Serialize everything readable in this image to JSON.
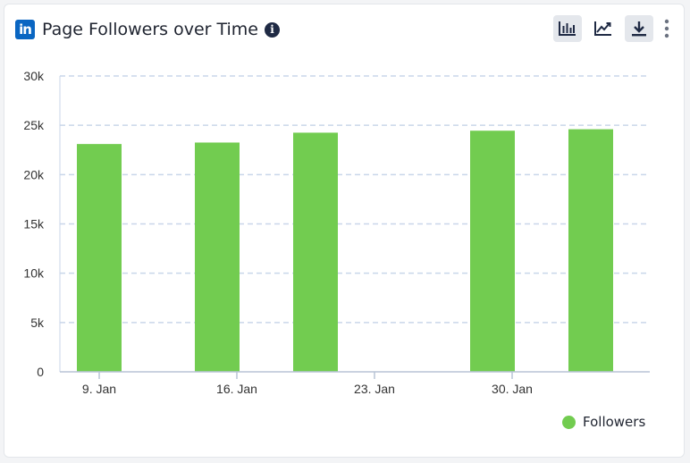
{
  "header": {
    "logo_text": "in",
    "title": "Page Followers over Time",
    "info_glyph": "i"
  },
  "toolbar": {
    "icons": [
      "bar-chart-icon",
      "line-chart-icon",
      "download-icon",
      "more-vertical-icon"
    ],
    "active": "bar-chart-icon"
  },
  "colors": {
    "bar": "#72cc50",
    "grid": "#c9d6ea",
    "axis": "#b8c4d6",
    "text": "#333333",
    "brand": "#0a66c2"
  },
  "chart_data": {
    "type": "bar",
    "x_axis_type": "datetime",
    "points": [
      {
        "x": "2024-01-09",
        "y": 23100
      },
      {
        "x": "2024-01-15",
        "y": 23250
      },
      {
        "x": "2024-01-20",
        "y": 24250
      },
      {
        "x": "2024-01-29",
        "y": 24450
      },
      {
        "x": "2024-02-03",
        "y": 24600
      }
    ],
    "series": [
      {
        "name": "Followers",
        "color": "#72cc50"
      }
    ],
    "x_ticks": [
      {
        "date": "2024-01-09",
        "label": "9. Jan"
      },
      {
        "date": "2024-01-16",
        "label": "16. Jan"
      },
      {
        "date": "2024-01-23",
        "label": "23. Jan"
      },
      {
        "date": "2024-01-30",
        "label": "30. Jan"
      }
    ],
    "y_ticks": [
      {
        "value": 0,
        "label": "0"
      },
      {
        "value": 5000,
        "label": "5k"
      },
      {
        "value": 10000,
        "label": "10k"
      },
      {
        "value": 15000,
        "label": "15k"
      },
      {
        "value": 20000,
        "label": "20k"
      },
      {
        "value": 25000,
        "label": "25k"
      },
      {
        "value": 30000,
        "label": "30k"
      }
    ],
    "ylim": [
      0,
      30000
    ],
    "xlim": [
      "2024-01-07",
      "2024-02-06"
    ],
    "grid": true,
    "legend_position": "bottom-right"
  },
  "legend": {
    "label": "Followers"
  }
}
